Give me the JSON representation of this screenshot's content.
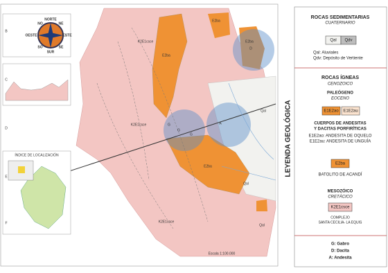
{
  "map": {
    "rows": [
      "B",
      "C",
      "D",
      "E",
      "F"
    ],
    "compass": [
      "NORTE",
      "NE",
      "ESTE",
      "SE",
      "SUR",
      "SO",
      "OESTE",
      "NO"
    ],
    "inset_title": "ÍNDICE DE LOCALIZACIÓN",
    "scale": "Escala 1:100.000",
    "labels": [
      "E2ba",
      "K2E1csce",
      "E2ba",
      "E2ba",
      "K2E1csce",
      "E2ba",
      "Qal",
      "Qal",
      "K2E1csce",
      "G",
      "G",
      "G",
      "A",
      "D",
      "Qal"
    ]
  },
  "legend": {
    "title": "LEYENDA GEOLÓGICA",
    "sed": {
      "title": "ROCAS SEDIMENTARIAS",
      "era": "CUATERNARIO",
      "units": [
        "Qal",
        "Qdv"
      ],
      "notes": [
        "Qal: Aluviales",
        "Qdv: Depósito de Vertiente"
      ]
    },
    "ign": {
      "title": "ROCAS ÍGNEAS",
      "era": "CENOZOICO",
      "period": "PALEÓGENO",
      "epoch": "EOCENO",
      "units": [
        "E1E2ao",
        "E1E2au"
      ],
      "notes": [
        "CUERPOS DE ANDESITAS",
        "Y DACITAS PORFIRÍTICAS",
        "E1E2ao: ANDESITA DE OQUELO",
        "E1E2au: ANDESITA DE UNGUÍA"
      ],
      "batolito_unit": "E2ba",
      "batolito": "BATOLITO DE ACANDÍ"
    },
    "meso": {
      "title": "MESOZÓICO",
      "period": "CRETÁCICO",
      "unit": "K2E1csce",
      "notes": [
        "COMPLEJO",
        "SANTA CECILIA- LA EQUIS"
      ]
    },
    "rocks": [
      "G: Gabro",
      "D: Dacita",
      "A: Andesita"
    ]
  }
}
